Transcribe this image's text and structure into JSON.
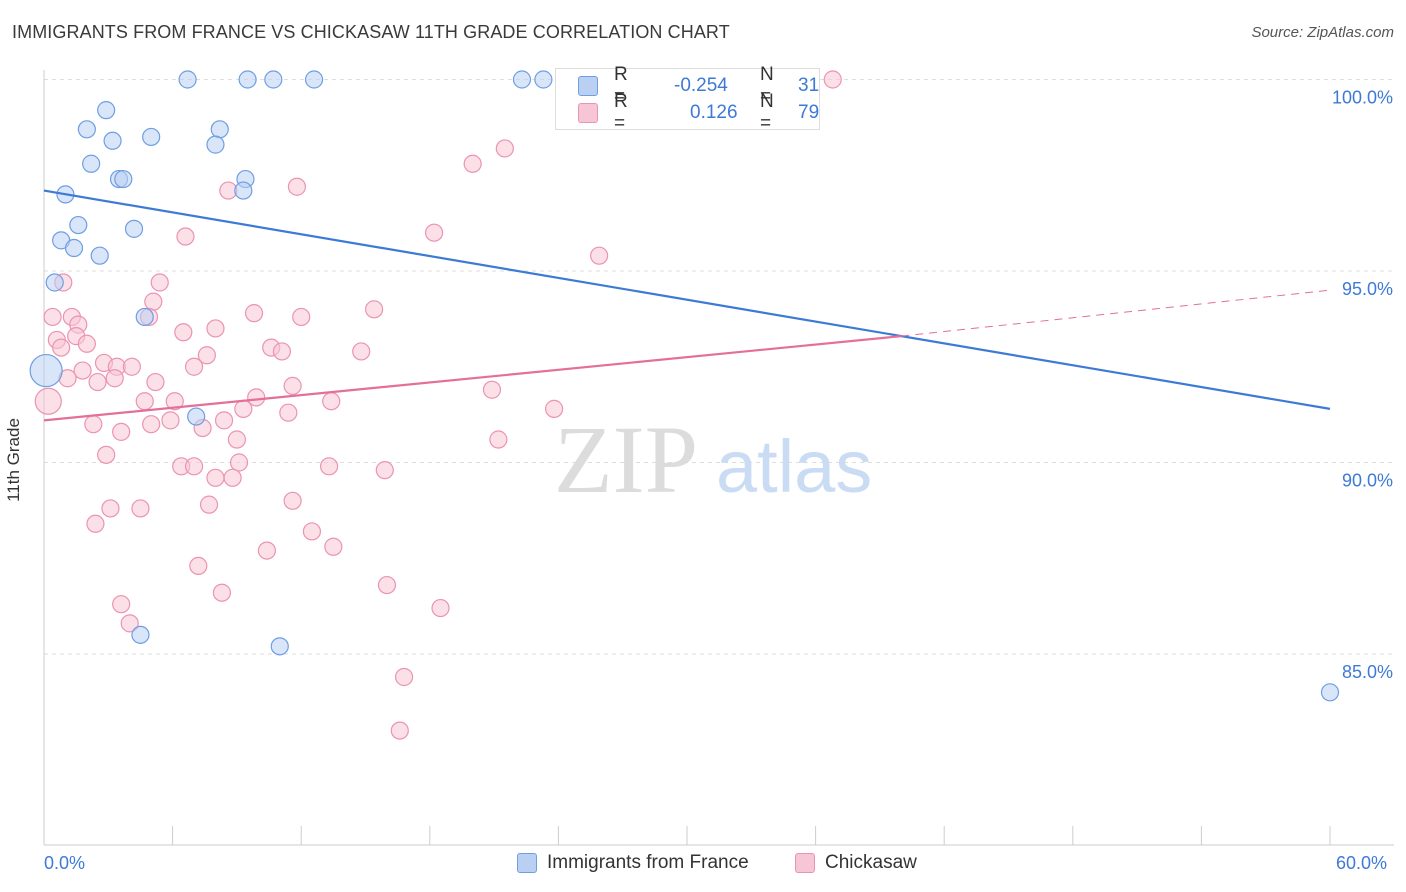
{
  "title": "IMMIGRANTS FROM FRANCE VS CHICKASAW 11TH GRADE CORRELATION CHART",
  "source": "Source: ZipAtlas.com",
  "watermark": {
    "zip": "ZIP",
    "atlas": "atlas"
  },
  "colors": {
    "blue": "#3d7ad6",
    "blue_fill": "#b9d0f2",
    "blue_stroke": "#6f9ee3",
    "pink": "#e36f9a",
    "pink_fill": "#f7c6d6",
    "pink_stroke": "#eb93b3",
    "grid": "#dddddd",
    "tick_text": "#3d7ad6"
  },
  "stats": {
    "rows": [
      {
        "r_label": "R =",
        "r_value": "-0.254",
        "n_label": "N =",
        "n_value": "31"
      },
      {
        "r_label": "R =",
        "r_value": "0.126",
        "n_label": "N = ",
        "n_value": "79"
      }
    ]
  },
  "legend": {
    "items": [
      "Immigrants from France",
      "Chickasaw"
    ]
  },
  "chart_data": {
    "type": "scatter",
    "title": "IMMIGRANTS FROM FRANCE VS CHICKASAW 11TH GRADE CORRELATION CHART",
    "xlabel": "",
    "ylabel": "11th Grade",
    "xlim": [
      0,
      60
    ],
    "ylim": [
      80.5,
      101.0
    ],
    "x_tick_labels": [
      "0.0%",
      "60.0%"
    ],
    "y_ticks": [
      85,
      90,
      95,
      100
    ],
    "y_tick_labels": [
      "85.0%",
      "90.0%",
      "95.0%",
      "100.0%"
    ],
    "grid": true,
    "legend_position": "bottom",
    "series": [
      {
        "name": "Immigrants from France",
        "points": [
          [
            6.7,
            100.0
          ],
          [
            9.5,
            100.0
          ],
          [
            10.7,
            100.0
          ],
          [
            12.6,
            100.0
          ],
          [
            22.3,
            100.0
          ],
          [
            23.3,
            100.0
          ],
          [
            31.1,
            100.0
          ],
          [
            2.9,
            99.2
          ],
          [
            2.0,
            98.7
          ],
          [
            3.2,
            98.4
          ],
          [
            5.0,
            98.5
          ],
          [
            8.2,
            98.7
          ],
          [
            8.0,
            98.3
          ],
          [
            2.2,
            97.8
          ],
          [
            3.5,
            97.4
          ],
          [
            3.7,
            97.4
          ],
          [
            9.4,
            97.4
          ],
          [
            9.3,
            97.1
          ],
          [
            1.0,
            97.0
          ],
          [
            1.6,
            96.2
          ],
          [
            4.2,
            96.1
          ],
          [
            0.8,
            95.8
          ],
          [
            1.4,
            95.6
          ],
          [
            2.6,
            95.4
          ],
          [
            0.5,
            94.7
          ],
          [
            4.7,
            93.8
          ],
          [
            7.1,
            91.2
          ],
          [
            4.5,
            85.5
          ],
          [
            11.0,
            85.2
          ],
          [
            0.1,
            92.4
          ],
          [
            60.0,
            84.0
          ]
        ]
      },
      {
        "name": "Chickasaw",
        "points": [
          [
            36.8,
            100.0
          ],
          [
            21.5,
            98.2
          ],
          [
            20.0,
            97.8
          ],
          [
            8.6,
            97.1
          ],
          [
            11.8,
            97.2
          ],
          [
            18.2,
            96.0
          ],
          [
            6.6,
            95.9
          ],
          [
            25.9,
            95.4
          ],
          [
            5.4,
            94.7
          ],
          [
            0.9,
            94.7
          ],
          [
            5.1,
            94.2
          ],
          [
            0.4,
            93.8
          ],
          [
            1.3,
            93.8
          ],
          [
            1.6,
            93.6
          ],
          [
            4.9,
            93.8
          ],
          [
            9.8,
            93.9
          ],
          [
            12.0,
            93.8
          ],
          [
            15.4,
            94.0
          ],
          [
            1.5,
            93.3
          ],
          [
            6.5,
            93.4
          ],
          [
            8.0,
            93.5
          ],
          [
            0.6,
            93.2
          ],
          [
            0.8,
            93.0
          ],
          [
            2.0,
            93.1
          ],
          [
            10.6,
            93.0
          ],
          [
            11.1,
            92.9
          ],
          [
            14.8,
            92.9
          ],
          [
            7.6,
            92.8
          ],
          [
            2.8,
            92.6
          ],
          [
            3.4,
            92.5
          ],
          [
            4.1,
            92.5
          ],
          [
            7.0,
            92.5
          ],
          [
            1.8,
            92.4
          ],
          [
            3.3,
            92.2
          ],
          [
            1.1,
            92.2
          ],
          [
            5.2,
            92.1
          ],
          [
            2.5,
            92.1
          ],
          [
            11.6,
            92.0
          ],
          [
            20.9,
            91.9
          ],
          [
            9.9,
            91.7
          ],
          [
            6.1,
            91.6
          ],
          [
            4.7,
            91.6
          ],
          [
            0.2,
            91.6
          ],
          [
            13.4,
            91.6
          ],
          [
            9.3,
            91.4
          ],
          [
            11.4,
            91.3
          ],
          [
            23.8,
            91.4
          ],
          [
            5.9,
            91.1
          ],
          [
            8.4,
            91.1
          ],
          [
            5.0,
            91.0
          ],
          [
            2.3,
            91.0
          ],
          [
            7.4,
            90.9
          ],
          [
            3.6,
            90.8
          ],
          [
            9.0,
            90.6
          ],
          [
            21.2,
            90.6
          ],
          [
            2.9,
            90.2
          ],
          [
            6.4,
            89.9
          ],
          [
            7.0,
            89.9
          ],
          [
            9.1,
            90.0
          ],
          [
            13.3,
            89.9
          ],
          [
            15.9,
            89.8
          ],
          [
            8.0,
            89.6
          ],
          [
            8.8,
            89.6
          ],
          [
            11.6,
            89.0
          ],
          [
            7.7,
            88.9
          ],
          [
            3.1,
            88.8
          ],
          [
            4.5,
            88.8
          ],
          [
            2.4,
            88.4
          ],
          [
            12.5,
            88.2
          ],
          [
            13.5,
            87.8
          ],
          [
            10.4,
            87.7
          ],
          [
            7.2,
            87.3
          ],
          [
            16.0,
            86.8
          ],
          [
            8.3,
            86.6
          ],
          [
            3.6,
            86.3
          ],
          [
            18.5,
            86.2
          ],
          [
            4.0,
            85.8
          ],
          [
            16.8,
            84.4
          ],
          [
            16.6,
            83.0
          ]
        ]
      }
    ],
    "trend_lines": [
      {
        "series": "Immigrants from France",
        "x": [
          0,
          60
        ],
        "y": [
          97.1,
          91.4
        ],
        "style": "solid"
      },
      {
        "series": "Chickasaw",
        "x": [
          0,
          40
        ],
        "y": [
          91.1,
          93.3
        ],
        "style": "solid"
      },
      {
        "series": "Chickasaw",
        "x": [
          40,
          60
        ],
        "y": [
          93.3,
          94.5
        ],
        "style": "dashed"
      }
    ]
  }
}
